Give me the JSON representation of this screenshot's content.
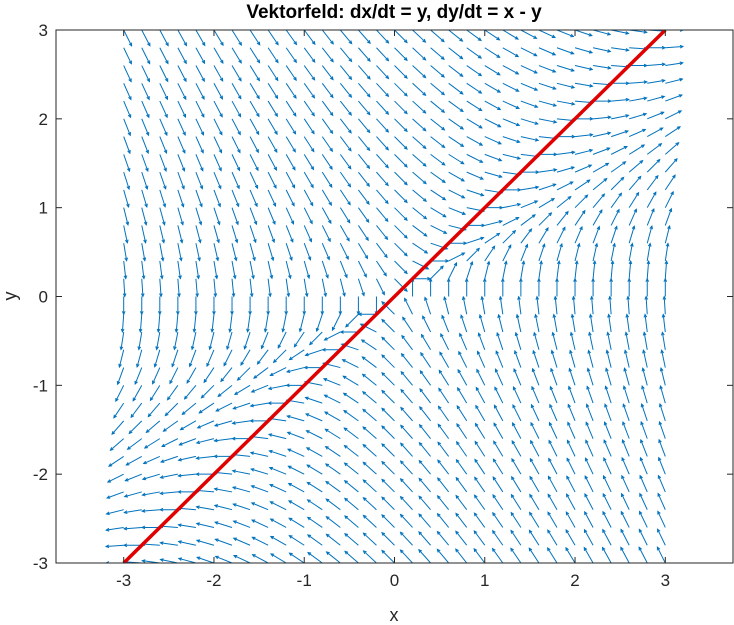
{
  "chart_data": {
    "type": "quiver",
    "title": "Vektorfeld: dx/dt = y, dy/dt = x - y",
    "xlabel": "x",
    "ylabel": "y",
    "xlim": [
      -3.75,
      3.75
    ],
    "ylim": [
      -3,
      3
    ],
    "xticks": [
      -3,
      -2,
      -1,
      0,
      1,
      2,
      3
    ],
    "yticks": [
      -3,
      -2,
      -1,
      0,
      1,
      2,
      3
    ],
    "xtick_labels": [
      "-3",
      "-2",
      "-1",
      "0",
      "1",
      "2",
      "3"
    ],
    "ytick_labels": [
      "-3",
      "-2",
      "-1",
      "0",
      "1",
      "2",
      "3"
    ],
    "grid": false,
    "field": {
      "dx_dt": "y",
      "dy_dt": "x - y",
      "x_range": [
        -3,
        3
      ],
      "y_range": [
        -3,
        3
      ],
      "step": 0.2,
      "normalized": true,
      "color": "#0072BD"
    },
    "line": {
      "x": [
        -3,
        3
      ],
      "y": [
        -3,
        3
      ],
      "color": "#E00000"
    }
  }
}
